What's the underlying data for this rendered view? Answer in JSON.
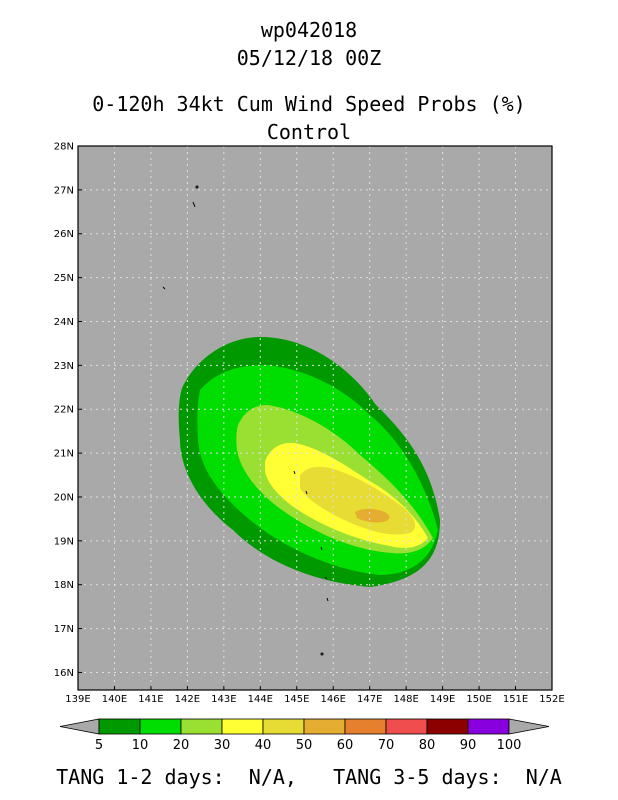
{
  "header": {
    "storm_id": "wp042018",
    "datetime": "05/12/18 00Z",
    "product": "0-120h 34kt Cum Wind Speed Probs (%)",
    "run": "Control"
  },
  "map": {
    "lon_range": [
      139,
      152
    ],
    "lat_range": [
      15.6,
      28
    ],
    "lon_ticks": [
      "139E",
      "140E",
      "141E",
      "142E",
      "143E",
      "144E",
      "145E",
      "146E",
      "147E",
      "148E",
      "149E",
      "150E",
      "151E",
      "152E"
    ],
    "lat_ticks": [
      "16N",
      "17N",
      "18N",
      "19N",
      "20N",
      "21N",
      "22N",
      "23N",
      "24N",
      "25N",
      "26N",
      "27N",
      "28N"
    ],
    "background_color": "#a9a9a9",
    "grid": "dotted"
  },
  "colorbar": {
    "labels": [
      "5",
      "10",
      "20",
      "30",
      "40",
      "50",
      "60",
      "70",
      "80",
      "90",
      "100"
    ],
    "colors": [
      "#009900",
      "#00dd00",
      "#99e033",
      "#ffff33",
      "#e6dc33",
      "#e6ad33",
      "#e6802e",
      "#f04e4e",
      "#8c0000",
      "#8800dd"
    ]
  },
  "footer": {
    "text": "TANG 1-2 days:  N/A,   TANG 3-5 days:  N/A"
  }
}
